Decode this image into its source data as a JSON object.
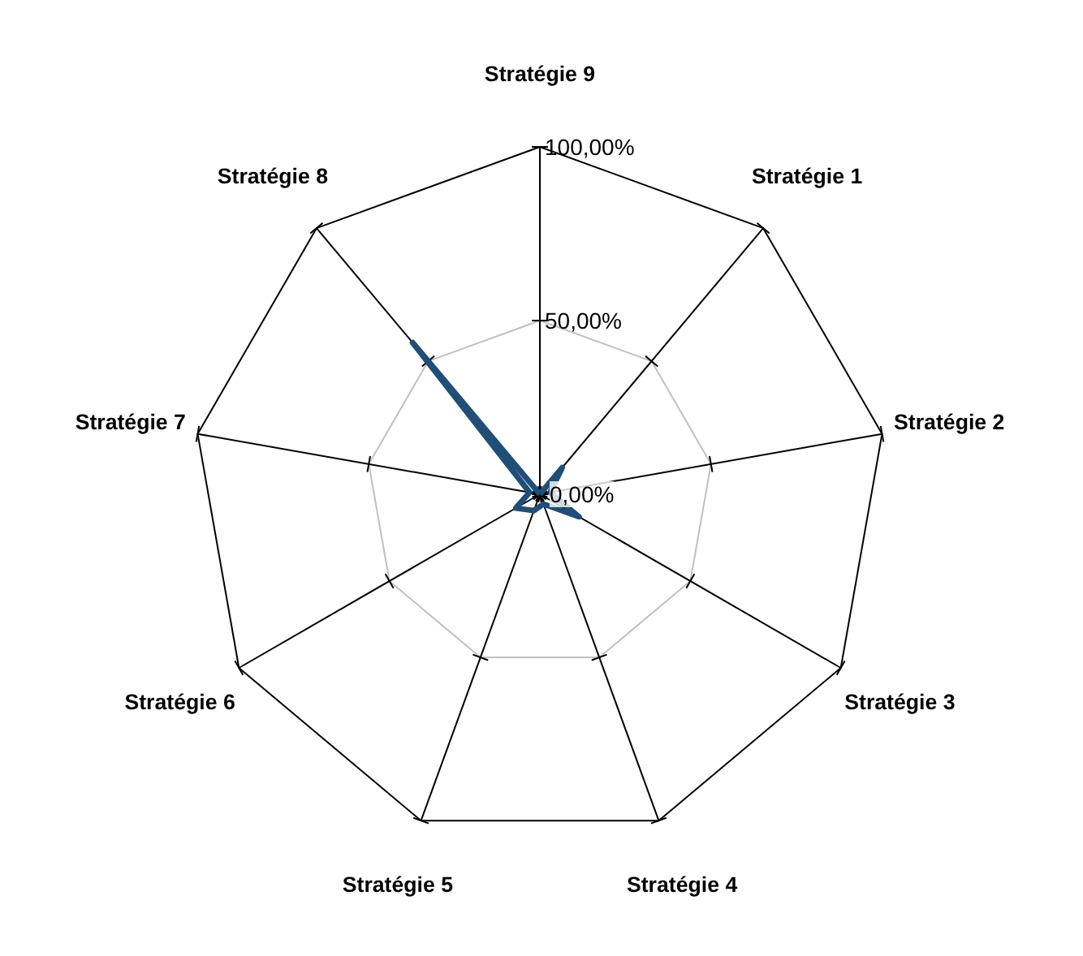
{
  "chart_data": {
    "type": "radar",
    "categories": [
      "Stratégie 9",
      "Stratégie 1",
      "Stratégie 2",
      "Stratégie 3",
      "Stratégie 4",
      "Stratégie 5",
      "Stratégie 6",
      "Stratégie 7",
      "Stratégie 8"
    ],
    "series": [
      {
        "color": "#1f4e79",
        "values": [
          0,
          10,
          3,
          13,
          3,
          5,
          8,
          3,
          57
        ]
      }
    ],
    "ylim": [
      0,
      100
    ],
    "yticks": [
      {
        "value": 0,
        "label": "0,00%"
      },
      {
        "value": 50,
        "label": "50,00%"
      },
      {
        "value": 100,
        "label": "100,00%"
      }
    ],
    "grid": true,
    "marker": "none",
    "line_style": "solid"
  }
}
